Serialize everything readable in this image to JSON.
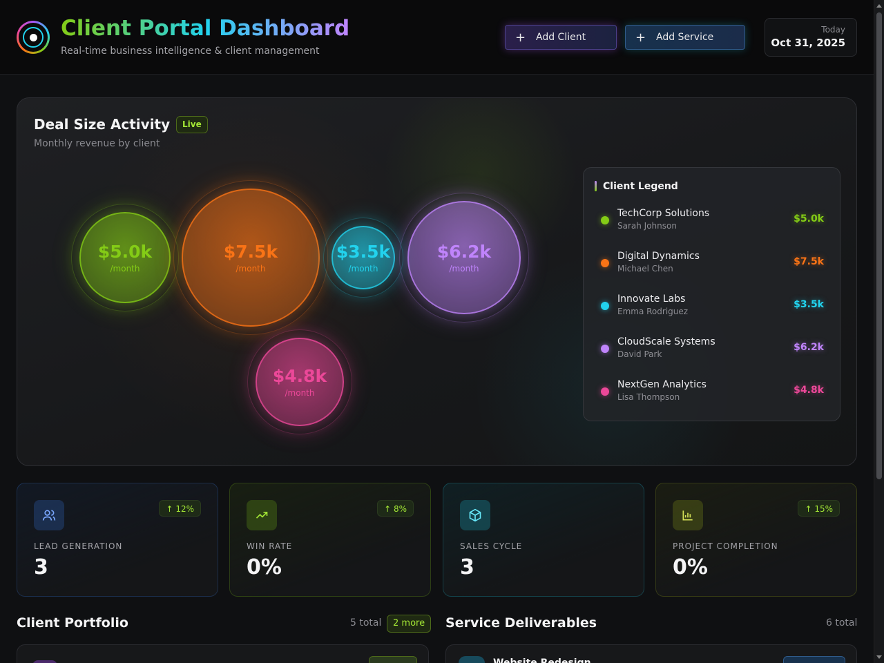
{
  "header": {
    "title": "Client Portal Dashboard",
    "subtitle": "Real-time business intelligence & client management",
    "add_client": "Add Client",
    "add_service": "Add Service",
    "date_label": "Today",
    "date_value": "Oct 31, 2025",
    "logo_icon": "orbit-logo-icon",
    "plus_icon": "plus-icon"
  },
  "activity": {
    "title": "Deal Size Activity",
    "live_badge": "Live",
    "subtitle": "Monthly revenue by client",
    "per_label": "/month",
    "legend_title": "Client Legend"
  },
  "clients": [
    {
      "name": "TechCorp Solutions",
      "contact": "Sarah Johnson",
      "value_label": "$5.0k",
      "value": 5.0,
      "color": "#84cc16"
    },
    {
      "name": "Digital Dynamics",
      "contact": "Michael Chen",
      "value_label": "$7.5k",
      "value": 7.5,
      "color": "#f97316"
    },
    {
      "name": "Innovate Labs",
      "contact": "Emma Rodriguez",
      "value_label": "$3.5k",
      "value": 3.5,
      "color": "#22d3ee"
    },
    {
      "name": "CloudScale Systems",
      "contact": "David Park",
      "value_label": "$6.2k",
      "value": 6.2,
      "color": "#c084fc"
    },
    {
      "name": "NextGen Analytics",
      "contact": "Lisa Thompson",
      "value_label": "$4.8k",
      "value": 4.8,
      "color": "#ec4899"
    }
  ],
  "stats": [
    {
      "label": "LEAD GENERATION",
      "value": "3",
      "trend": "↑ 12%",
      "icon": "users-icon",
      "color": "#3b82f6"
    },
    {
      "label": "WIN RATE",
      "value": "0%",
      "trend": "↑ 8%",
      "icon": "trending-up-icon",
      "color": "#84cc16"
    },
    {
      "label": "SALES CYCLE",
      "value": "3",
      "trend": "",
      "icon": "package-icon",
      "color": "#22d3ee"
    },
    {
      "label": "PROJECT COMPLETION",
      "value": "0%",
      "trend": "↑ 15%",
      "icon": "bar-chart-icon",
      "color": "#a3b81a"
    }
  ],
  "portfolio": {
    "title": "Client Portfolio",
    "count": "5 total",
    "more": "2 more"
  },
  "deliverables": {
    "title": "Service Deliverables",
    "count": "6 total",
    "first_item": "Website Redesign"
  }
}
